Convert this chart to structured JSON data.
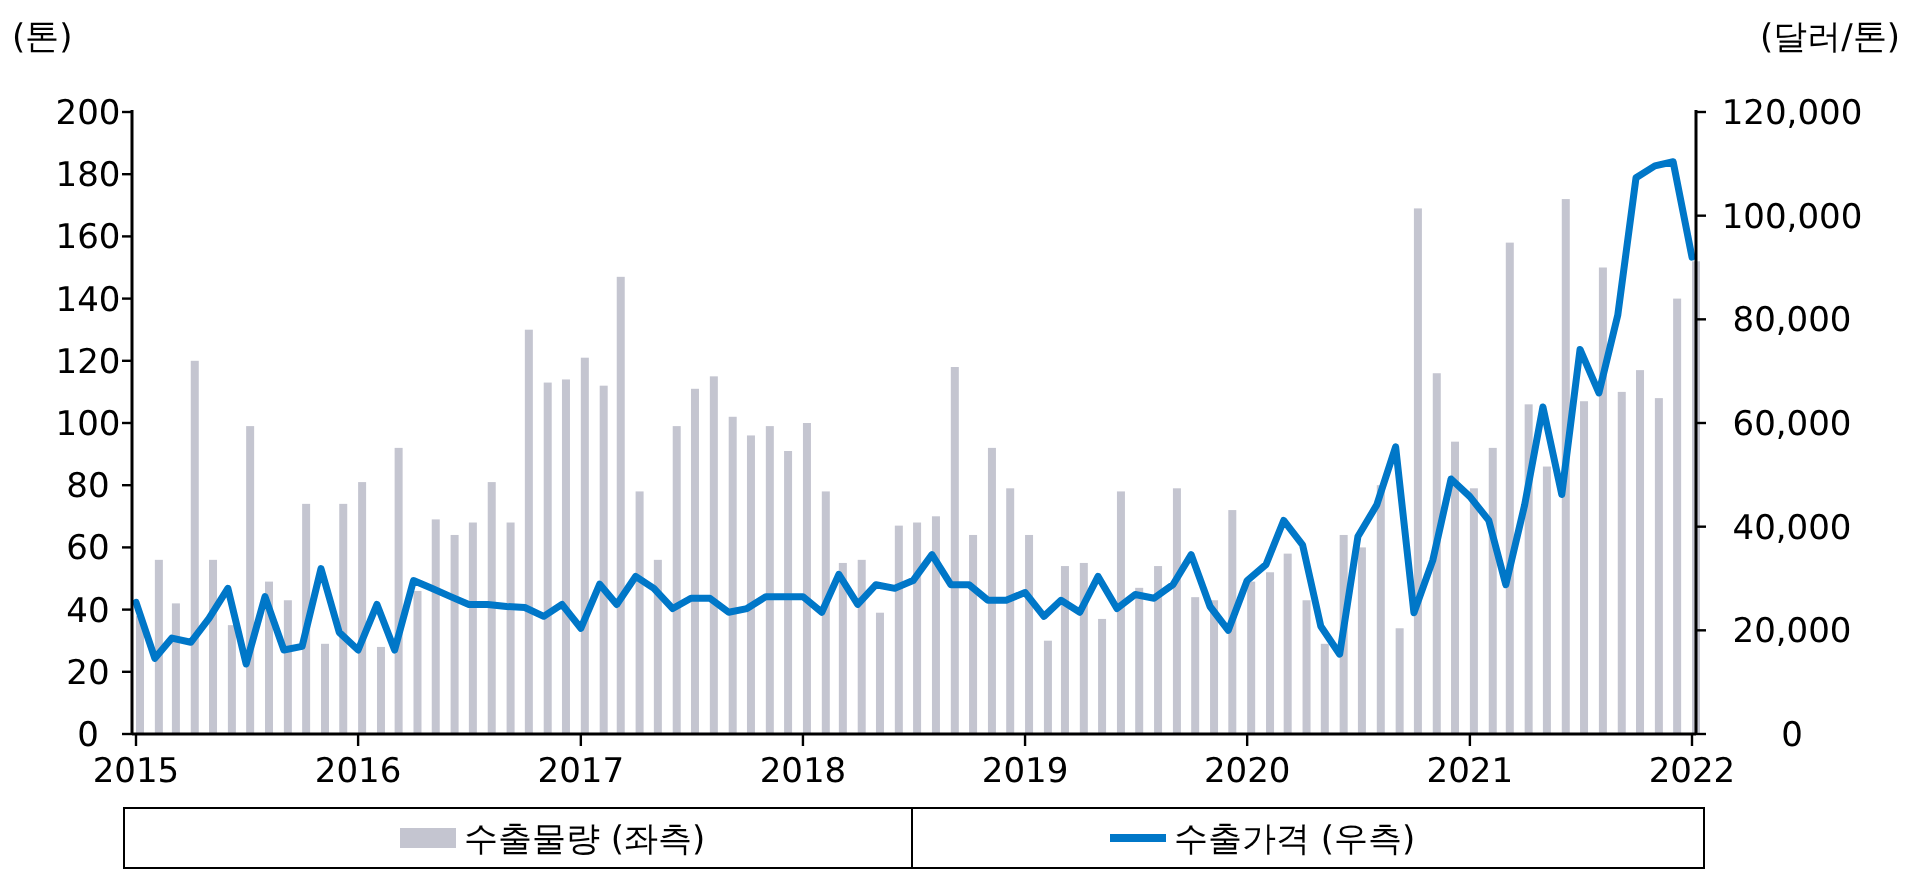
{
  "chart_data": {
    "type": "bar",
    "ylabel": "(톤)",
    "y2label": "(달러/톤)",
    "legend": "bottom",
    "grid": false,
    "x": [
      "2015-01",
      "2015-02",
      "2015-03",
      "2015-04",
      "2015-05",
      "2015-06",
      "2015-07",
      "2015-08",
      "2015-09",
      "2015-10",
      "2015-11",
      "2015-12",
      "2016-01",
      "2016-02",
      "2016-03",
      "2016-04",
      "2016-05",
      "2016-06",
      "2016-07",
      "2016-08",
      "2016-09",
      "2016-10",
      "2016-11",
      "2016-12",
      "2017-01",
      "2017-02",
      "2017-03",
      "2017-04",
      "2017-05",
      "2017-06",
      "2017-07",
      "2017-08",
      "2017-09",
      "2017-10",
      "2017-11",
      "2017-12",
      "2018-01",
      "2018-02",
      "2018-03",
      "2018-04",
      "2018-05",
      "2018-06",
      "2018-07",
      "2018-08",
      "2018-09",
      "2018-10",
      "2018-11",
      "2018-12",
      "2019-01",
      "2019-02",
      "2019-03",
      "2019-04",
      "2019-05",
      "2019-06",
      "2019-07",
      "2019-08",
      "2019-09",
      "2019-10",
      "2019-11",
      "2019-12",
      "2020-01",
      "2020-02",
      "2020-03",
      "2020-04",
      "2020-05",
      "2020-06",
      "2020-07",
      "2020-08",
      "2020-09",
      "2020-10",
      "2020-11",
      "2020-12",
      "2021-01",
      "2021-02",
      "2021-03",
      "2021-04",
      "2021-05",
      "2021-06",
      "2021-07",
      "2021-08",
      "2021-09",
      "2021-10",
      "2021-11",
      "2021-12",
      "2022-01"
    ],
    "series": [
      {
        "name": "수출물량 (좌측)",
        "color": "#c4c5d0",
        "values": [
          38,
          56,
          42,
          120,
          56,
          35,
          99,
          49,
          43,
          74,
          29,
          74,
          81,
          28,
          92,
          46,
          69,
          64,
          68,
          81,
          68,
          130,
          113,
          114,
          121,
          112,
          147,
          78,
          56,
          99,
          111,
          115,
          102,
          96,
          99,
          91,
          100,
          78,
          55,
          56,
          39,
          67,
          68,
          70,
          118,
          64,
          92,
          79,
          64,
          30,
          54,
          55,
          37,
          78,
          47,
          54,
          79,
          44,
          43,
          72,
          49,
          52,
          58,
          43,
          29,
          64,
          60,
          80,
          34,
          169,
          116,
          94,
          79,
          92,
          158,
          106,
          86,
          172,
          107,
          150,
          110,
          117,
          108,
          140,
          152
        ]
      },
      {
        "name": "수출가격 (우측)",
        "type": "line",
        "axis": "y2",
        "color": "#0077c8",
        "values": [
          25400,
          14600,
          18500,
          17700,
          22300,
          28100,
          13500,
          26500,
          16200,
          16900,
          31900,
          19600,
          16200,
          25000,
          16200,
          29600,
          28100,
          26500,
          25000,
          25000,
          24600,
          24400,
          22700,
          25000,
          20400,
          28900,
          25000,
          30400,
          28100,
          24200,
          26200,
          26200,
          23500,
          24200,
          26500,
          26500,
          26500,
          23500,
          30800,
          25000,
          28800,
          28100,
          29600,
          34600,
          28800,
          28800,
          25800,
          25800,
          27300,
          22700,
          25800,
          23500,
          30400,
          24200,
          26900,
          26200,
          28800,
          34600,
          24600,
          20000,
          29600,
          32700,
          41200,
          36500,
          20800,
          15400,
          38100,
          44200,
          55400,
          23400,
          33500,
          49200,
          45800,
          41200,
          28800,
          44200,
          63100,
          46200,
          74200,
          65800,
          80800,
          107300,
          109600,
          110400,
          92000
        ]
      }
    ],
    "xlim": [
      "2015-01",
      "2022-01"
    ],
    "xticks": [
      "2015",
      "2016",
      "2017",
      "2018",
      "2019",
      "2020",
      "2021",
      "2022"
    ],
    "ylim": [
      0,
      200
    ],
    "yticks": [
      0,
      20,
      40,
      60,
      80,
      100,
      120,
      140,
      160,
      180,
      200
    ],
    "y2lim": [
      0,
      120000
    ],
    "y2ticks": [
      {
        "value": 0,
        "label": "0"
      },
      {
        "value": 20000,
        "label": "20,000"
      },
      {
        "value": 40000,
        "label": "40,000"
      },
      {
        "value": 60000,
        "label": "60,000"
      },
      {
        "value": 80000,
        "label": "80,000"
      },
      {
        "value": 100000,
        "label": "100,000"
      },
      {
        "value": 120000,
        "label": "120,000"
      }
    ]
  }
}
